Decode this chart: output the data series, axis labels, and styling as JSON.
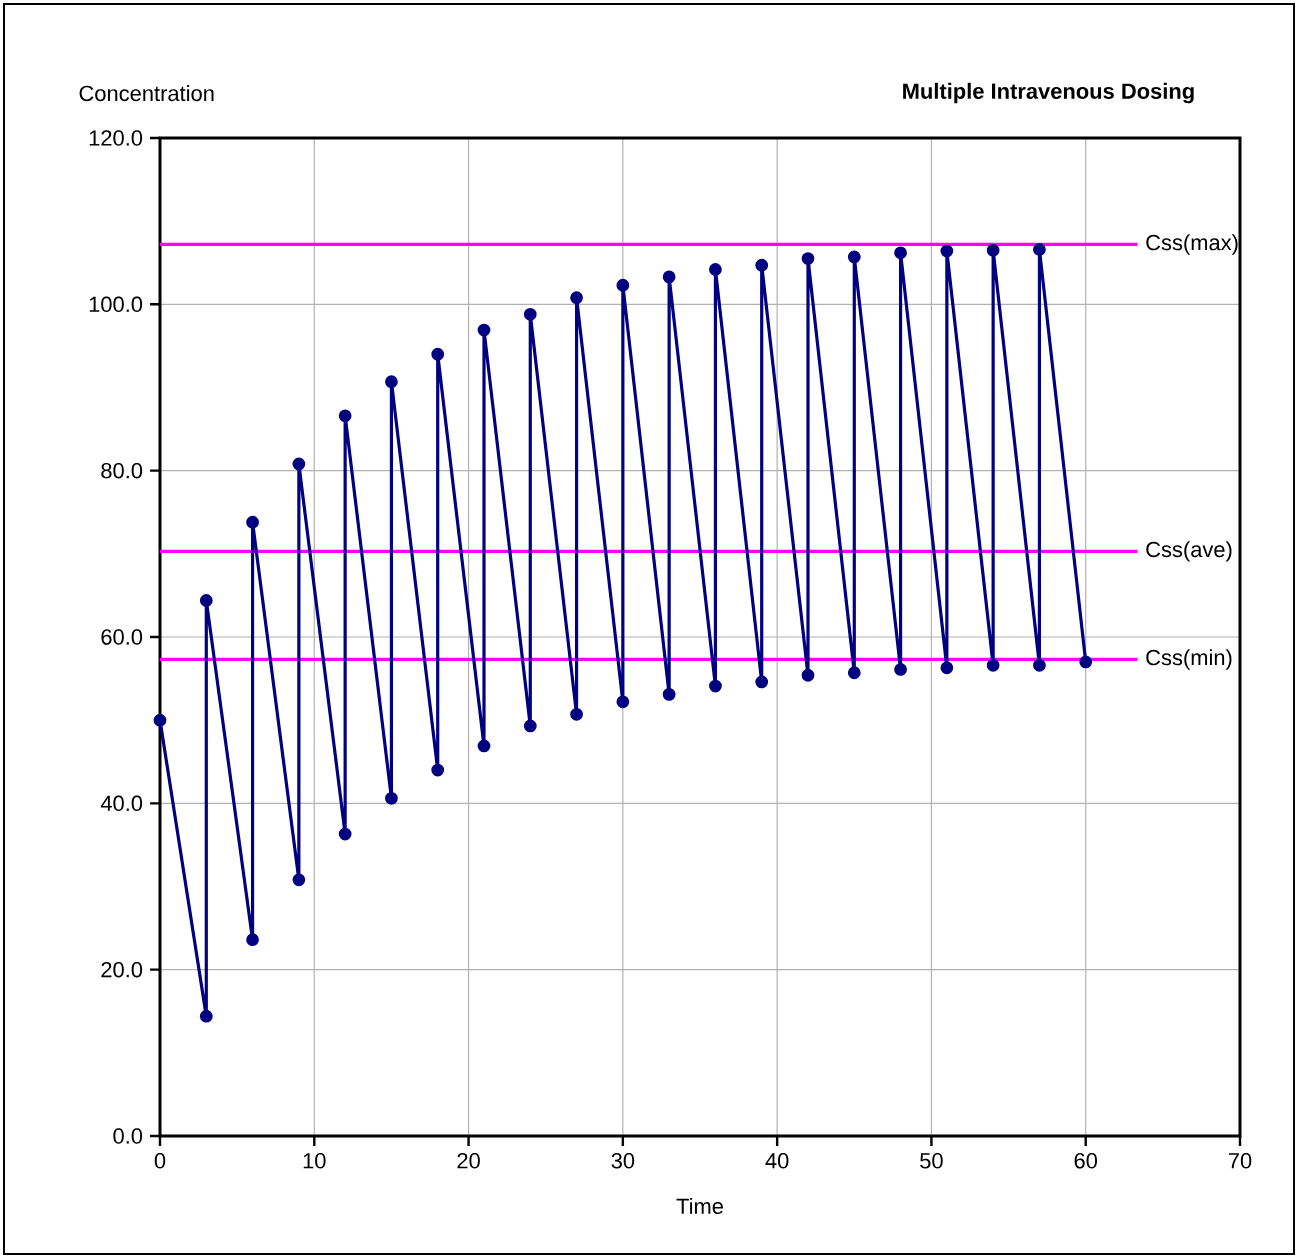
{
  "chart_data": {
    "type": "line",
    "title": "Multiple Intravenous Dosing",
    "xlabel": "Time",
    "ylabel": "Concentration",
    "xlim": [
      0,
      70
    ],
    "xticks": [
      0,
      10,
      20,
      30,
      40,
      50,
      60,
      70
    ],
    "ylim": [
      0,
      120
    ],
    "yticks": [
      {
        "value": 0,
        "label": "0.0"
      },
      {
        "value": 20,
        "label": "20.0"
      },
      {
        "value": 40,
        "label": "40.0"
      },
      {
        "value": 60,
        "label": "60.0"
      },
      {
        "value": 80,
        "label": "80.0"
      },
      {
        "value": 100,
        "label": "100.0"
      },
      {
        "value": 120,
        "label": "120.0"
      }
    ],
    "grid": true,
    "marker": "circle",
    "line_style": "solid",
    "series": [
      {
        "color": "#000080",
        "x": [
          0,
          3,
          3,
          6,
          6,
          9,
          9,
          12,
          12,
          15,
          15,
          18,
          18,
          21,
          21,
          24,
          24,
          27,
          27,
          30,
          30,
          33,
          33,
          36,
          36,
          39,
          39,
          42,
          42,
          45,
          45,
          48,
          48,
          51,
          51,
          54,
          54,
          57,
          57,
          60
        ],
        "values": [
          50,
          14.4,
          64.4,
          23.6,
          73.8,
          30.8,
          80.8,
          36.3,
          86.6,
          40.6,
          90.7,
          44.0,
          94.0,
          46.9,
          96.9,
          49.3,
          98.8,
          50.7,
          100.8,
          52.2,
          102.3,
          53.1,
          103.3,
          54.1,
          104.2,
          54.6,
          104.7,
          55.4,
          105.5,
          55.7,
          105.7,
          56.1,
          106.2,
          56.3,
          106.4,
          56.6,
          106.5,
          56.6,
          106.6,
          57.0
        ]
      }
    ],
    "ref_lines": [
      {
        "axis": "y",
        "value": 107.2,
        "label": "Css(max)",
        "color": "#ff00ff"
      },
      {
        "axis": "y",
        "value": 70.3,
        "label": "Css(ave)",
        "color": "#ff00ff"
      },
      {
        "axis": "y",
        "value": 57.3,
        "label": "Css(min)",
        "color": "#ff00ff"
      }
    ]
  }
}
